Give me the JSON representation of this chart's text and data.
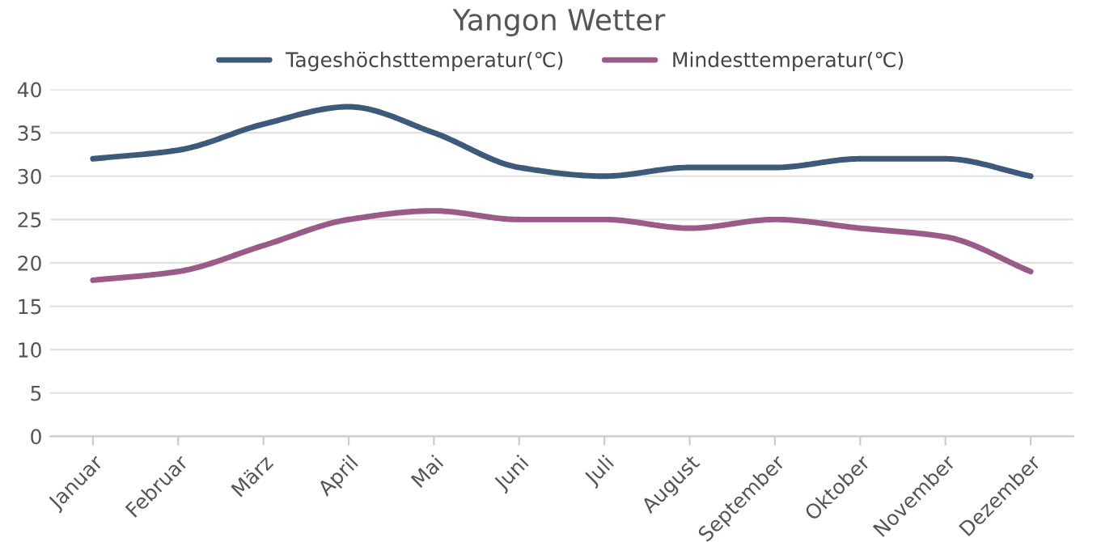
{
  "chart_data": {
    "type": "line",
    "title": "Yangon Wetter",
    "categories": [
      "Januar",
      "Februar",
      "März",
      "April",
      "Mai",
      "Juni",
      "Juli",
      "August",
      "September",
      "Oktober",
      "November",
      "Dezember"
    ],
    "series": [
      {
        "name": "Tageshöchsttemperatur(℃)",
        "color": "#3d5a7a",
        "values": [
          32,
          33,
          36,
          38,
          35,
          31,
          30,
          31,
          31,
          32,
          32,
          30
        ]
      },
      {
        "name": "Mindesttemperatur(℃)",
        "color": "#9a5b88",
        "values": [
          18,
          19,
          22,
          25,
          26,
          25,
          25,
          24,
          25,
          24,
          23,
          19
        ]
      }
    ],
    "ylim": [
      0,
      40
    ],
    "yticks": [
      0,
      5,
      10,
      15,
      20,
      25,
      30,
      35,
      40
    ],
    "grid": "y",
    "legend": "top",
    "marker": "none",
    "line_style": "solid"
  }
}
